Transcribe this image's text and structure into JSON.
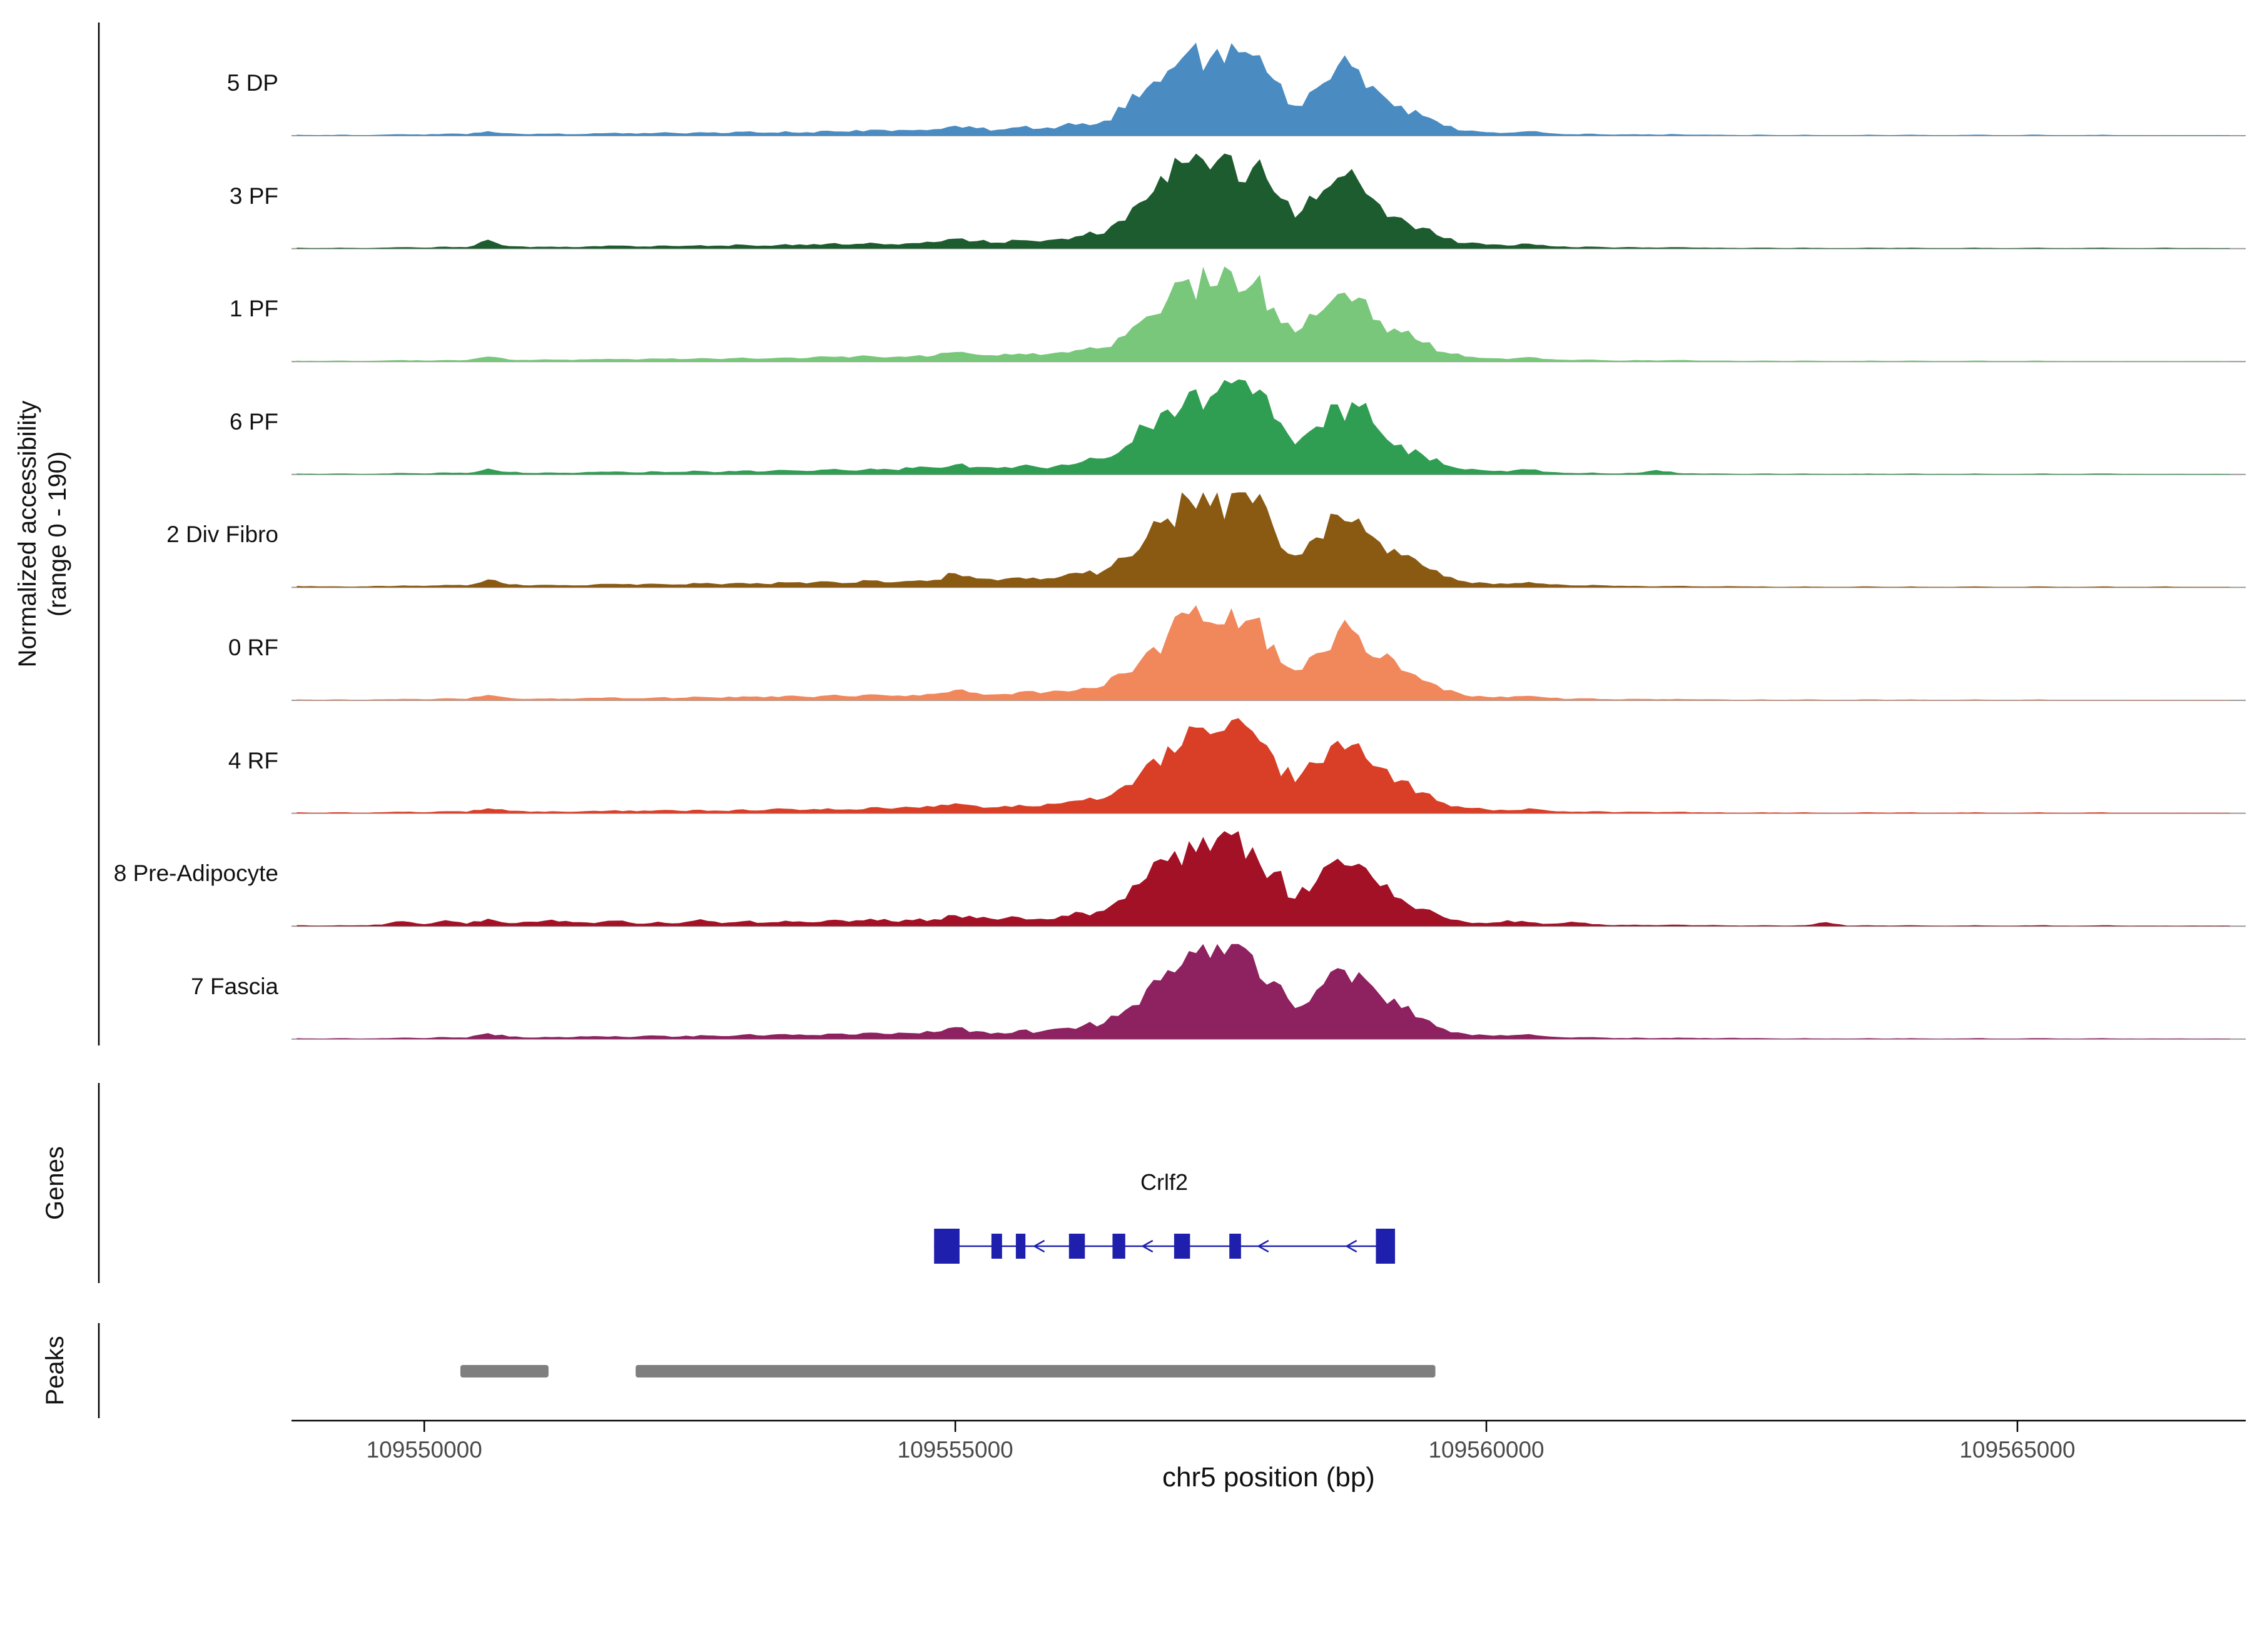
{
  "figure": {
    "y_axis_label_line1": "Normalized accessibility",
    "y_axis_label_line2": "(range 0 - 190)",
    "x_axis_title": "chr5 position (bp)",
    "sections": {
      "genes_label": "Genes",
      "peaks_label": "Peaks"
    }
  },
  "chart_data": {
    "type": "area",
    "description": "Genome browser style normalized ATAC accessibility tracks over chr5, with gene model and peak calls",
    "x_start": 109548800,
    "x_step": 200,
    "xlim": [
      109548750,
      109567150
    ],
    "ylim_per_track": [
      0,
      190
    ],
    "x_ticks": [
      109550000,
      109555000,
      109560000,
      109565000
    ],
    "x_tick_labels": [
      "109550000",
      "109555000",
      "109560000",
      "109565000"
    ],
    "series": [
      {
        "name": "5 DP",
        "color": "#4a8cc2",
        "values": [
          2,
          1,
          2,
          1,
          2,
          3,
          2,
          4,
          3,
          9,
          5,
          3,
          4,
          3,
          5,
          6,
          4,
          6,
          5,
          7,
          5,
          8,
          6,
          9,
          7,
          10,
          8,
          12,
          9,
          11,
          13,
          20,
          15,
          12,
          17,
          14,
          20,
          25,
          30,
          55,
          95,
          130,
          170,
          155,
          185,
          160,
          112,
          60,
          95,
          140,
          132,
          86,
          60,
          40,
          20,
          10,
          7,
          6,
          9,
          5,
          3,
          4,
          2,
          3,
          2,
          3,
          2,
          2,
          1,
          2,
          1,
          2,
          1,
          1,
          2,
          1,
          2,
          1,
          1,
          2,
          1,
          1,
          2,
          1,
          1,
          2,
          1,
          1,
          1,
          1,
          1,
          1
        ]
      },
      {
        "name": "3 PF",
        "color": "#1d5c2f",
        "values": [
          2,
          1,
          2,
          1,
          2,
          3,
          2,
          4,
          3,
          18,
          5,
          3,
          4,
          3,
          5,
          6,
          4,
          6,
          5,
          7,
          6,
          8,
          6,
          9,
          7,
          10,
          8,
          12,
          9,
          11,
          13,
          20,
          15,
          12,
          17,
          14,
          20,
          26,
          30,
          56,
          98,
          132,
          172,
          158,
          186,
          162,
          114,
          62,
          98,
          142,
          134,
          88,
          62,
          42,
          21,
          11,
          8,
          6,
          10,
          5,
          3,
          4,
          2,
          3,
          2,
          3,
          2,
          2,
          1,
          2,
          1,
          2,
          1,
          1,
          2,
          1,
          2,
          1,
          1,
          2,
          1,
          1,
          2,
          1,
          1,
          2,
          1,
          1,
          2,
          1,
          1,
          1
        ]
      },
      {
        "name": "1 PF",
        "color": "#79c77b",
        "values": [
          2,
          1,
          2,
          1,
          2,
          3,
          2,
          3,
          3,
          10,
          4,
          3,
          4,
          3,
          5,
          5,
          4,
          6,
          5,
          7,
          5,
          8,
          6,
          8,
          7,
          10,
          8,
          11,
          9,
          11,
          12,
          19,
          14,
          12,
          16,
          13,
          19,
          24,
          28,
          52,
          90,
          125,
          165,
          150,
          180,
          155,
          108,
          58,
          92,
          135,
          128,
          82,
          58,
          38,
          19,
          10,
          7,
          5,
          9,
          5,
          3,
          4,
          2,
          3,
          2,
          3,
          2,
          2,
          1,
          2,
          1,
          2,
          1,
          1,
          2,
          1,
          2,
          1,
          1,
          2,
          1,
          1,
          2,
          1,
          1,
          1,
          1,
          1,
          1,
          1,
          1,
          1
        ]
      },
      {
        "name": "6 PF",
        "color": "#2f9e52",
        "values": [
          2,
          1,
          2,
          1,
          2,
          3,
          2,
          4,
          3,
          12,
          5,
          3,
          4,
          3,
          5,
          6,
          4,
          6,
          5,
          7,
          5,
          8,
          6,
          9,
          7,
          10,
          8,
          12,
          10,
          13,
          14,
          20,
          15,
          13,
          17,
          14,
          20,
          26,
          32,
          56,
          95,
          130,
          165,
          155,
          182,
          160,
          112,
          60,
          96,
          140,
          135,
          86,
          60,
          40,
          20,
          10,
          8,
          6,
          10,
          5,
          3,
          4,
          2,
          3,
          9,
          3,
          2,
          2,
          1,
          2,
          1,
          2,
          1,
          1,
          2,
          1,
          2,
          1,
          1,
          2,
          1,
          1,
          2,
          1,
          1,
          2,
          1,
          1,
          1,
          1,
          1,
          1
        ]
      },
      {
        "name": "2 Div Fibro",
        "color": "#8a5a13",
        "values": [
          3,
          2,
          2,
          2,
          3,
          4,
          3,
          5,
          4,
          16,
          6,
          4,
          5,
          4,
          6,
          7,
          5,
          7,
          6,
          8,
          6,
          9,
          7,
          10,
          8,
          12,
          9,
          14,
          10,
          13,
          15,
          28,
          18,
          14,
          20,
          16,
          22,
          28,
          34,
          60,
          100,
          138,
          176,
          162,
          188,
          168,
          118,
          64,
          100,
          145,
          138,
          90,
          64,
          44,
          22,
          12,
          9,
          7,
          11,
          6,
          4,
          5,
          3,
          3,
          2,
          3,
          2,
          2,
          2,
          2,
          1,
          2,
          1,
          1,
          2,
          1,
          2,
          1,
          1,
          2,
          1,
          1,
          2,
          1,
          1,
          2,
          1,
          1,
          2,
          1,
          1,
          1
        ]
      },
      {
        "name": "0 RF",
        "color": "#f1885c",
        "values": [
          2,
          1,
          2,
          1,
          2,
          3,
          2,
          4,
          3,
          11,
          5,
          3,
          4,
          3,
          5,
          6,
          4,
          6,
          5,
          7,
          5,
          8,
          6,
          9,
          7,
          10,
          8,
          12,
          9,
          11,
          13,
          21,
          15,
          12,
          17,
          14,
          19,
          25,
          29,
          54,
          96,
          132,
          172,
          156,
          184,
          162,
          112,
          60,
          94,
          138,
          130,
          84,
          60,
          40,
          20,
          10,
          7,
          6,
          9,
          5,
          3,
          4,
          2,
          3,
          2,
          3,
          2,
          2,
          1,
          2,
          1,
          2,
          1,
          1,
          2,
          1,
          2,
          1,
          1,
          2,
          1,
          1,
          2,
          1,
          1,
          1,
          1,
          1,
          1,
          1,
          1,
          1
        ]
      },
      {
        "name": "4 RF",
        "color": "#d93f27",
        "values": [
          2,
          1,
          2,
          1,
          2,
          3,
          2,
          4,
          3,
          10,
          5,
          3,
          4,
          3,
          5,
          6,
          4,
          6,
          5,
          7,
          5,
          8,
          6,
          9,
          7,
          10,
          8,
          12,
          9,
          12,
          13,
          20,
          15,
          12,
          17,
          14,
          20,
          26,
          30,
          56,
          98,
          134,
          174,
          158,
          186,
          164,
          114,
          62,
          100,
          145,
          140,
          92,
          66,
          42,
          21,
          11,
          8,
          6,
          10,
          5,
          3,
          4,
          2,
          3,
          2,
          3,
          2,
          2,
          1,
          2,
          1,
          2,
          1,
          1,
          2,
          1,
          2,
          1,
          1,
          2,
          1,
          1,
          2,
          1,
          1,
          2,
          1,
          1,
          1,
          1,
          1,
          1
        ]
      },
      {
        "name": "8 Pre-Adipocyte",
        "color": "#a31126",
        "values": [
          2,
          1,
          2,
          2,
          3,
          10,
          4,
          12,
          5,
          15,
          6,
          9,
          13,
          8,
          6,
          11,
          5,
          9,
          6,
          14,
          6,
          10,
          7,
          11,
          8,
          12,
          9,
          15,
          10,
          12,
          14,
          22,
          16,
          13,
          18,
          15,
          21,
          27,
          31,
          55,
          96,
          130,
          170,
          150,
          182,
          158,
          108,
          55,
          90,
          135,
          125,
          80,
          55,
          35,
          18,
          9,
          6,
          12,
          8,
          5,
          9,
          4,
          2,
          3,
          2,
          3,
          2,
          2,
          1,
          2,
          1,
          2,
          8,
          1,
          2,
          1,
          2,
          1,
          1,
          2,
          1,
          1,
          2,
          1,
          1,
          2,
          1,
          1,
          1,
          1,
          1,
          1
        ]
      },
      {
        "name": "7 Fascia",
        "color": "#8e2160",
        "values": [
          2,
          1,
          2,
          1,
          2,
          3,
          2,
          4,
          3,
          12,
          5,
          3,
          4,
          4,
          6,
          6,
          5,
          7,
          5,
          8,
          6,
          9,
          7,
          10,
          8,
          11,
          9,
          13,
          10,
          12,
          14,
          24,
          16,
          13,
          18,
          15,
          22,
          27,
          32,
          58,
          100,
          138,
          176,
          162,
          190,
          168,
          116,
          62,
          98,
          142,
          134,
          88,
          62,
          42,
          21,
          11,
          8,
          7,
          10,
          5,
          3,
          4,
          2,
          3,
          2,
          3,
          2,
          2,
          2,
          2,
          1,
          2,
          1,
          1,
          2,
          1,
          2,
          1,
          1,
          2,
          1,
          1,
          2,
          1,
          1,
          2,
          1,
          1,
          1,
          1,
          1,
          1
        ]
      }
    ],
    "gene_track": {
      "gene_name": "Crlf2",
      "color": "#1f1fad",
      "strand": "-",
      "line_span": [
        109554800,
        109559140
      ],
      "exons": [
        {
          "start": 109554800,
          "end": 109555040,
          "tall": true
        },
        {
          "start": 109555340,
          "end": 109555440,
          "tall": false
        },
        {
          "start": 109555570,
          "end": 109555660,
          "tall": false
        },
        {
          "start": 109556070,
          "end": 109556220,
          "tall": false
        },
        {
          "start": 109556480,
          "end": 109556600,
          "tall": false
        },
        {
          "start": 109557060,
          "end": 109557210,
          "tall": false
        },
        {
          "start": 109557580,
          "end": 109557690,
          "tall": false
        },
        {
          "start": 109558960,
          "end": 109559140,
          "tall": true
        }
      ],
      "arrow_positions": [
        109555780,
        109556800,
        109557890,
        109558720
      ]
    },
    "peaks": {
      "color": "#7f7f7f",
      "intervals": [
        [
          109550340,
          109551170
        ],
        [
          109551990,
          109559520
        ]
      ]
    }
  }
}
